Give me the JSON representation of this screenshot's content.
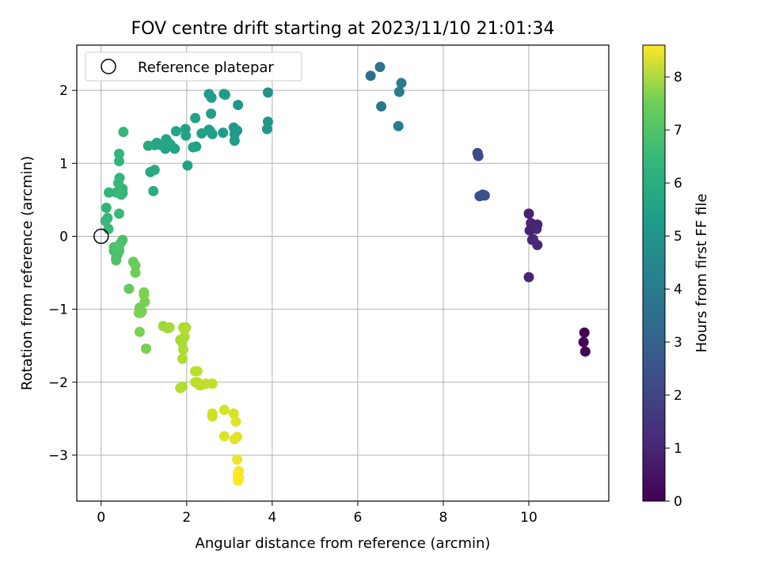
{
  "chart_data": {
    "type": "scatter",
    "title": "FOV centre drift starting at 2023/11/10 21:01:34",
    "xlabel": "Angular distance from reference (arcmin)",
    "ylabel": "Rotation from reference (arcmin)",
    "xlim": [
      -0.57,
      11.87
    ],
    "ylim": [
      -3.63,
      2.62
    ],
    "xticks": [
      0,
      2,
      4,
      6,
      8,
      10
    ],
    "yticks": [
      -3,
      -2,
      -1,
      0,
      1,
      2
    ],
    "grid": true,
    "legend": {
      "position": "top-left",
      "entries": [
        "Reference platepar"
      ]
    },
    "reference_point": {
      "x": 0,
      "y": 0
    },
    "colorbar": {
      "label": "Hours from first FF file",
      "colormap": "viridis",
      "range": [
        0,
        8.6
      ],
      "ticks": [
        0,
        1,
        2,
        3,
        4,
        5,
        6,
        7,
        8
      ]
    },
    "series": [
      {
        "x": [
          11.3,
          11.28,
          11.32,
          10.0,
          10.05,
          10.2,
          10.18,
          10.1,
          10.02,
          10.08,
          10.2,
          10.0,
          8.8,
          8.82,
          8.85,
          8.92,
          8.97,
          6.3,
          6.52,
          6.55,
          7.02,
          6.97,
          6.95,
          3.9,
          3.9,
          3.88,
          3.2,
          3.18,
          3.1,
          3.12,
          3.12,
          2.9,
          2.87,
          2.85,
          2.58,
          2.52,
          2.57,
          2.55,
          2.6,
          2.52,
          2.35,
          2.22,
          2.2,
          2.15,
          2.02,
          1.98,
          1.97,
          1.75,
          1.72,
          1.62,
          1.55,
          1.52,
          1.5,
          1.4,
          1.3,
          1.25,
          1.1,
          1.15,
          1.25,
          1.22,
          0.52,
          0.42,
          0.42,
          0.43,
          0.5,
          0.5,
          0.47,
          0.4,
          0.35,
          0.42,
          0.18,
          0.12,
          0.15,
          0.1,
          0.17
        ],
        "y": [
          -1.32,
          -1.45,
          -1.58,
          0.31,
          0.18,
          0.16,
          0.1,
          -0.04,
          0.08,
          -0.05,
          -0.12,
          -0.56,
          1.14,
          1.1,
          0.55,
          0.57,
          0.56,
          2.2,
          2.32,
          1.78,
          2.1,
          1.98,
          1.51,
          1.97,
          1.57,
          1.47,
          1.8,
          1.45,
          1.49,
          1.4,
          1.31,
          1.94,
          1.95,
          1.42,
          1.9,
          1.95,
          1.68,
          1.44,
          1.4,
          1.46,
          1.41,
          1.23,
          1.62,
          1.22,
          0.97,
          1.38,
          1.47,
          1.44,
          1.2,
          1.26,
          1.3,
          1.33,
          1.2,
          1.25,
          1.28,
          1.25,
          1.24,
          0.88,
          0.91,
          0.62,
          1.43,
          1.13,
          1.03,
          0.8,
          0.65,
          0.59,
          0.57,
          0.73,
          0.6,
          0.31,
          0.6,
          0.39,
          0.25,
          0.21,
          0.1
        ],
        "hours": [
          0.0,
          0.05,
          0.1,
          0.8,
          0.85,
          0.9,
          0.95,
          0.9,
          0.85,
          0.95,
          1.0,
          0.9,
          1.9,
          1.95,
          2.05,
          2.1,
          2.15,
          3.2,
          3.3,
          3.35,
          3.5,
          3.6,
          3.65,
          4.4,
          4.5,
          4.55,
          4.55,
          4.6,
          4.6,
          4.65,
          4.7,
          4.65,
          4.7,
          4.75,
          4.7,
          4.75,
          4.8,
          4.8,
          4.85,
          4.85,
          4.85,
          4.9,
          4.9,
          4.95,
          4.95,
          4.95,
          4.95,
          5.0,
          5.0,
          5.0,
          5.05,
          5.05,
          5.05,
          5.1,
          5.1,
          5.1,
          5.2,
          5.2,
          5.25,
          5.3,
          5.7,
          5.6,
          5.6,
          5.65,
          5.7,
          5.7,
          5.75,
          5.75,
          5.8,
          5.8,
          5.6,
          5.65,
          5.7,
          5.75,
          5.8
        ]
      },
      {
        "x": [
          0.3,
          0.35,
          0.38,
          0.42,
          0.5,
          0.45,
          0.3,
          0.35,
          0.42,
          0.65,
          0.75,
          0.8,
          0.8,
          0.9,
          0.92,
          0.95,
          1.0,
          1.02,
          1.05,
          0.9,
          0.88,
          1.0,
          1.45,
          1.55,
          1.6,
          1.85,
          1.98,
          1.88,
          1.92,
          1.95,
          1.9,
          1.92,
          1.85,
          1.9,
          1.95,
          2.2,
          2.25,
          2.2,
          2.3,
          2.25,
          2.35,
          2.45,
          2.6,
          2.6,
          2.6,
          2.88,
          3.1,
          2.88,
          3.15,
          3.12,
          3.18,
          3.22,
          3.2,
          3.22,
          3.2,
          3.2,
          3.2,
          3.18
        ],
        "y": [
          -0.2,
          -0.3,
          -0.25,
          -0.2,
          -0.05,
          -0.1,
          -0.15,
          -0.33,
          -0.18,
          -0.72,
          -0.35,
          -0.4,
          -0.5,
          -0.98,
          -1.05,
          -1.03,
          -0.77,
          -0.9,
          -1.54,
          -1.31,
          -1.05,
          -0.8,
          -1.23,
          -1.26,
          -1.25,
          -1.42,
          -1.25,
          -1.45,
          -1.55,
          -1.38,
          -1.68,
          -1.25,
          -2.08,
          -2.06,
          -1.28,
          -1.85,
          -1.85,
          -2.0,
          -2.04,
          -2.0,
          -2.04,
          -2.02,
          -2.02,
          -2.43,
          -2.47,
          -2.38,
          -2.43,
          -2.74,
          -2.54,
          -2.78,
          -3.06,
          -3.22,
          -3.28,
          -3.31,
          -3.33,
          -3.35,
          -3.25,
          -2.75
        ],
        "hours": [
          6.0,
          6.05,
          6.1,
          6.1,
          6.1,
          6.15,
          6.15,
          6.2,
          6.2,
          6.5,
          6.6,
          6.6,
          6.65,
          6.7,
          6.7,
          6.75,
          6.75,
          6.8,
          6.8,
          6.85,
          6.85,
          6.9,
          7.3,
          7.35,
          7.4,
          7.4,
          7.45,
          7.45,
          7.5,
          7.5,
          7.55,
          7.55,
          7.55,
          7.6,
          7.6,
          7.65,
          7.7,
          7.7,
          7.7,
          7.75,
          7.75,
          7.8,
          7.8,
          8.0,
          8.0,
          8.05,
          8.1,
          8.15,
          8.2,
          8.25,
          8.35,
          8.45,
          8.5,
          8.55,
          8.55,
          8.6,
          8.6,
          8.2
        ]
      }
    ]
  }
}
